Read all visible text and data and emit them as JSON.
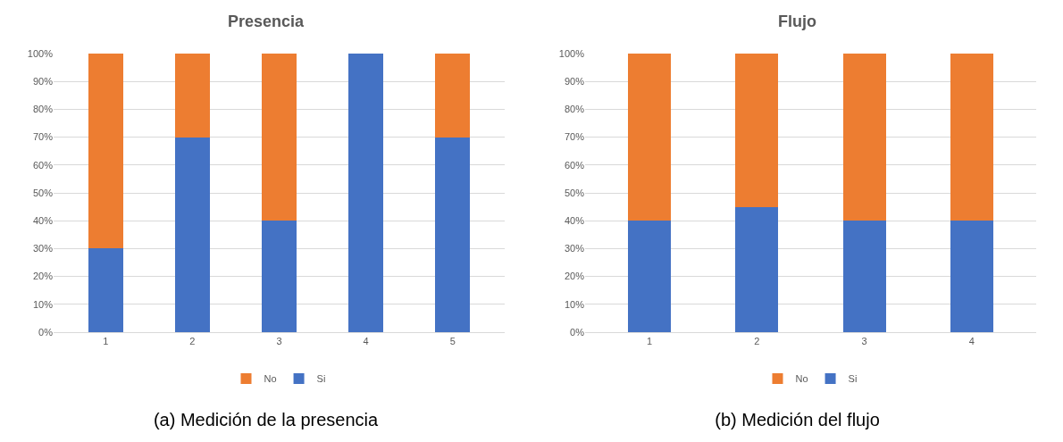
{
  "chart_data": [
    {
      "type": "bar",
      "title": "Presencia",
      "stacked": true,
      "categories": [
        "1",
        "2",
        "3",
        "4",
        "5"
      ],
      "series": [
        {
          "name": "Si",
          "color": "#4472c4",
          "values": [
            30,
            70,
            40,
            100,
            70
          ]
        },
        {
          "name": "No",
          "color": "#ed7d31",
          "values": [
            70,
            30,
            60,
            0,
            30
          ]
        }
      ],
      "ylim": [
        0,
        100
      ],
      "yticks": [
        {
          "value": 0,
          "label": "0%"
        },
        {
          "value": 10,
          "label": "10%"
        },
        {
          "value": 20,
          "label": "20%"
        },
        {
          "value": 30,
          "label": "30%"
        },
        {
          "value": 40,
          "label": "40%"
        },
        {
          "value": 50,
          "label": "50%"
        },
        {
          "value": 60,
          "label": "60%"
        },
        {
          "value": 70,
          "label": "70%"
        },
        {
          "value": 80,
          "label": "80%"
        },
        {
          "value": 90,
          "label": "90%"
        },
        {
          "value": 100,
          "label": "100%"
        }
      ],
      "grid": "y",
      "legend": "bottom",
      "annotations": [
        "(a) Medición de la presencia"
      ]
    },
    {
      "type": "bar",
      "title": "Flujo",
      "stacked": true,
      "categories": [
        "1",
        "2",
        "3",
        "4"
      ],
      "series": [
        {
          "name": "Si",
          "color": "#4472c4",
          "values": [
            40,
            45,
            40,
            40
          ]
        },
        {
          "name": "No",
          "color": "#ed7d31",
          "values": [
            60,
            55,
            60,
            60
          ]
        }
      ],
      "ylim": [
        0,
        100
      ],
      "yticks": [
        {
          "value": 0,
          "label": "0%"
        },
        {
          "value": 10,
          "label": "10%"
        },
        {
          "value": 20,
          "label": "20%"
        },
        {
          "value": 30,
          "label": "30%"
        },
        {
          "value": 40,
          "label": "40%"
        },
        {
          "value": 50,
          "label": "50%"
        },
        {
          "value": 60,
          "label": "60%"
        },
        {
          "value": 70,
          "label": "70%"
        },
        {
          "value": 80,
          "label": "80%"
        },
        {
          "value": 90,
          "label": "90%"
        },
        {
          "value": 100,
          "label": "100%"
        }
      ],
      "grid": "y",
      "legend": "bottom",
      "annotations": [
        "(b) Medición del flujo"
      ]
    }
  ]
}
